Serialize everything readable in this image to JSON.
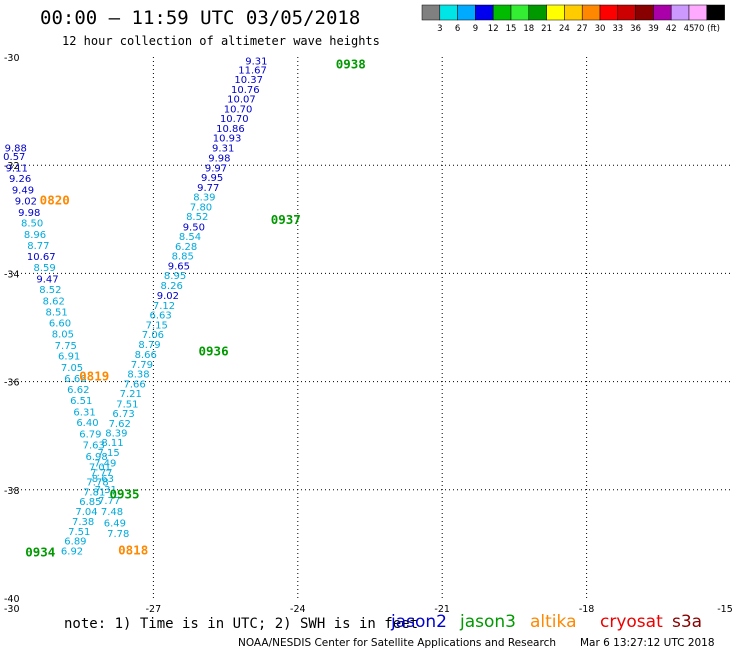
{
  "header": {
    "title": "00:00 – 11:59 UTC 03/05/2018",
    "subtitle": "12 hour collection of altimeter wave heights"
  },
  "scale": {
    "labels": [
      "3",
      "6",
      "9",
      "12",
      "15",
      "18",
      "21",
      "24",
      "27",
      "30",
      "33",
      "36",
      "39",
      "42",
      "45",
      "70 (ft)"
    ],
    "colors": [
      "#808080",
      "#00e5e5",
      "#00aaff",
      "#0000ee",
      "#00bb00",
      "#33ee33",
      "#009900",
      "#ffff00",
      "#ffcc00",
      "#ff8800",
      "#ff0000",
      "#cc0000",
      "#880000",
      "#aa00aa",
      "#cc99ff",
      "#ffaaff",
      "#000000"
    ]
  },
  "note": "note: 1) Time is in UTC; 2) SWH is in feet",
  "satellites": [
    {
      "name": "jason2",
      "color": "#0000cc"
    },
    {
      "name": "jason3",
      "color": "#009900"
    },
    {
      "name": "altika",
      "color": "#ff8800"
    },
    {
      "name": "cryosat",
      "color": "#ee0000"
    },
    {
      "name": "s3a",
      "color": "#880000"
    }
  ],
  "footer": {
    "credit": "NOAA/NESDIS Center for Satellite Applications and Research",
    "timestamp": "Mar  6 13:27:12 UTC 2018"
  },
  "chart_data": {
    "type": "scatter",
    "xlim": [
      -30,
      -15
    ],
    "ylim": [
      -40,
      -30
    ],
    "x_ticks": [
      "-30",
      "-27",
      "-24",
      "-21",
      "-18",
      "-15"
    ],
    "y_ticks": [
      "-30",
      "-32",
      "-34",
      "-36",
      "-38",
      "-40"
    ],
    "grid": true,
    "units": "ft",
    "tracks": [
      {
        "color": "#0000cc",
        "points": [
          [
            -24.86,
            -30.07,
            "9.31"
          ],
          [
            -24.94,
            -30.24,
            "11.67"
          ],
          [
            -25.02,
            -30.42,
            "10.37"
          ],
          [
            -25.09,
            -30.6,
            "10.76"
          ],
          [
            -25.17,
            -30.78,
            "10.07"
          ],
          [
            -25.24,
            -30.96,
            "10.70"
          ],
          [
            -25.32,
            -31.14,
            "10.70"
          ],
          [
            -25.4,
            -31.32,
            "10.86"
          ],
          [
            -25.47,
            -31.5,
            "10.93"
          ],
          [
            -25.55,
            -31.68,
            "9.31"
          ],
          [
            -25.63,
            -31.87,
            "9.98"
          ],
          [
            -25.7,
            -32.05,
            "9.97"
          ],
          [
            -25.78,
            -32.23,
            "9.95"
          ],
          [
            -25.86,
            -32.41,
            "9.77"
          ]
        ]
      },
      {
        "color": "#00aadd",
        "points": [
          [
            -25.94,
            -32.59,
            "8.39"
          ],
          [
            -26.01,
            -32.77,
            "7.80"
          ],
          [
            -26.09,
            -32.95,
            "8.52"
          ]
        ]
      },
      {
        "color": "#0000cc",
        "points": [
          [
            -26.16,
            -33.14,
            "9.50"
          ]
        ]
      },
      {
        "color": "#00aadd",
        "points": [
          [
            -26.24,
            -33.32,
            "8.54"
          ],
          [
            -26.32,
            -33.5,
            "6.28"
          ],
          [
            -26.39,
            -33.68,
            "8.85"
          ]
        ]
      },
      {
        "color": "#0000cc",
        "points": [
          [
            -26.47,
            -33.86,
            "9.65"
          ]
        ]
      },
      {
        "color": "#00aadd",
        "points": [
          [
            -26.55,
            -34.04,
            "8.95"
          ],
          [
            -26.62,
            -34.22,
            "8.26"
          ]
        ]
      },
      {
        "color": "#0000cc",
        "points": [
          [
            -26.7,
            -34.41,
            "9.02"
          ]
        ]
      },
      {
        "color": "#00aadd",
        "points": [
          [
            -26.78,
            -34.59,
            "7.12"
          ],
          [
            -26.85,
            -34.77,
            "6.63"
          ],
          [
            -26.93,
            -34.95,
            "7.15"
          ],
          [
            -27.01,
            -35.13,
            "7.06"
          ],
          [
            -27.08,
            -35.31,
            "8.79"
          ],
          [
            -27.16,
            -35.5,
            "8.66"
          ],
          [
            -27.24,
            -35.68,
            "7.79"
          ],
          [
            -27.31,
            -35.86,
            "8.38"
          ],
          [
            -27.39,
            -36.04,
            "7.66"
          ],
          [
            -27.47,
            -36.22,
            "7.21"
          ],
          [
            -27.54,
            -36.41,
            "7.51"
          ],
          [
            -27.62,
            -36.59,
            "6.73"
          ],
          [
            -27.7,
            -36.77,
            "7.62"
          ],
          [
            -27.77,
            -36.95,
            "8.39"
          ],
          [
            -27.85,
            -37.13,
            "8.11"
          ],
          [
            -27.93,
            -37.31,
            "7.15"
          ],
          [
            -28.0,
            -37.5,
            "7.49"
          ],
          [
            -28.08,
            -37.68,
            "7.77"
          ],
          [
            -28.16,
            -37.86,
            "7.78"
          ],
          [
            -28.23,
            -38.04,
            "7.81"
          ],
          [
            -28.31,
            -38.22,
            "6.85"
          ],
          [
            -28.39,
            -38.4,
            "7.04"
          ],
          [
            -28.46,
            -38.59,
            "7.38"
          ],
          [
            -28.54,
            -38.77,
            "7.51"
          ],
          [
            -28.62,
            -38.95,
            "6.89"
          ],
          [
            -28.69,
            -39.13,
            "6.92"
          ]
        ]
      },
      {
        "color": "#0000cc",
        "points": [
          [
            -29.86,
            -31.68,
            "9.88"
          ],
          [
            -29.89,
            -31.84,
            "0.57"
          ],
          [
            -29.84,
            -32.05,
            "9.11"
          ],
          [
            -29.77,
            -32.25,
            "9.26"
          ],
          [
            -29.71,
            -32.46,
            "9.49"
          ],
          [
            -29.65,
            -32.66,
            "9.02"
          ],
          [
            -29.58,
            -32.87,
            "9.98"
          ]
        ]
      },
      {
        "color": "#00aadd",
        "points": [
          [
            -29.52,
            -33.07,
            "8.50"
          ],
          [
            -29.46,
            -33.28,
            "8.96"
          ],
          [
            -29.39,
            -33.48,
            "8.77"
          ]
        ]
      },
      {
        "color": "#0000cc",
        "points": [
          [
            -29.33,
            -33.69,
            "10.67"
          ]
        ]
      },
      {
        "color": "#00aadd",
        "points": [
          [
            -29.26,
            -33.89,
            "8.59"
          ]
        ]
      },
      {
        "color": "#0000cc",
        "points": [
          [
            -29.2,
            -34.1,
            "9.47"
          ]
        ]
      },
      {
        "color": "#00aadd",
        "points": [
          [
            -29.14,
            -34.3,
            "8.52"
          ],
          [
            -29.07,
            -34.51,
            "8.62"
          ],
          [
            -29.01,
            -34.71,
            "8.51"
          ],
          [
            -28.94,
            -34.92,
            "6.60"
          ],
          [
            -28.88,
            -35.12,
            "8.05"
          ],
          [
            -28.82,
            -35.33,
            "7.75"
          ],
          [
            -28.75,
            -35.53,
            "6.91"
          ],
          [
            -28.69,
            -35.74,
            "7.05"
          ],
          [
            -28.62,
            -35.94,
            "6.66"
          ],
          [
            -28.56,
            -36.15,
            "6.62"
          ],
          [
            -28.5,
            -36.35,
            "6.51"
          ],
          [
            -28.43,
            -36.56,
            "6.31"
          ],
          [
            -28.37,
            -36.76,
            "6.40"
          ],
          [
            -28.31,
            -36.97,
            "6.79"
          ],
          [
            -28.24,
            -37.17,
            "7.63"
          ],
          [
            -28.18,
            -37.38,
            "6.98"
          ],
          [
            -28.11,
            -37.58,
            "7.01"
          ],
          [
            -28.05,
            -37.79,
            "8.63"
          ],
          [
            -27.99,
            -37.99,
            "7.31"
          ],
          [
            -27.92,
            -38.2,
            "7.77"
          ],
          [
            -27.86,
            -38.4,
            "7.48"
          ],
          [
            -27.8,
            -38.61,
            "6.49"
          ],
          [
            -27.73,
            -38.81,
            "7.78"
          ]
        ]
      }
    ],
    "annotations": [
      {
        "x": -22.9,
        "y": -30.13,
        "text": "0938",
        "color": "#009900"
      },
      {
        "x": -24.25,
        "y": -33.0,
        "text": "0937",
        "color": "#009900"
      },
      {
        "x": -25.75,
        "y": -35.43,
        "text": "0936",
        "color": "#009900"
      },
      {
        "x": -27.6,
        "y": -38.08,
        "text": "0935",
        "color": "#009900"
      },
      {
        "x": -29.35,
        "y": -39.15,
        "text": "0934",
        "color": "#009900"
      },
      {
        "x": -29.05,
        "y": -32.64,
        "text": "0820",
        "color": "#ff8800"
      },
      {
        "x": -28.23,
        "y": -35.9,
        "text": "0819",
        "color": "#ff8800"
      },
      {
        "x": -27.42,
        "y": -39.11,
        "text": "0818",
        "color": "#ff8800"
      }
    ]
  }
}
